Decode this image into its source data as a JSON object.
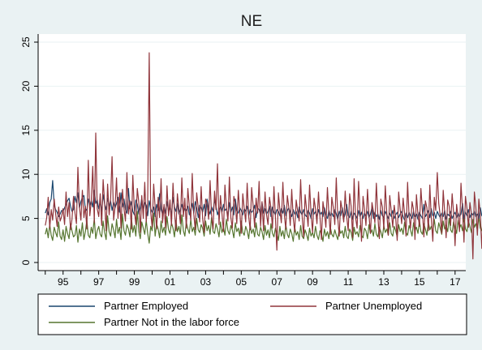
{
  "chart_data": {
    "type": "line",
    "title": "NE",
    "xlabel": "",
    "ylabel": "",
    "xlim": [
      1993.6,
      2017.6
    ],
    "ylim": [
      0,
      25
    ],
    "yticks": [
      0,
      5,
      10,
      15,
      20,
      25
    ],
    "xtick_labels": [
      {
        "label": "95",
        "x": 1995
      },
      {
        "label": "97",
        "x": 1997
      },
      {
        "label": "99",
        "x": 1999
      },
      {
        "label": "01",
        "x": 2001
      },
      {
        "label": "03",
        "x": 2003
      },
      {
        "label": "05",
        "x": 2005
      },
      {
        "label": "07",
        "x": 2007
      },
      {
        "label": "09",
        "x": 2009
      },
      {
        "label": "11",
        "x": 2011
      },
      {
        "label": "13",
        "x": 2013
      },
      {
        "label": "15",
        "x": 2015
      },
      {
        "label": "17",
        "x": 2017
      }
    ],
    "minor_ticks": [
      1994,
      1995,
      1996,
      1997,
      1998,
      1999,
      2000,
      2001,
      2002,
      2003,
      2004,
      2005,
      2006,
      2007,
      2008,
      2009,
      2010,
      2011,
      2012,
      2013,
      2014,
      2015,
      2016,
      2017
    ],
    "grid": true,
    "legend": "bottom",
    "start_year": 1994,
    "points_per_year": 12,
    "series": [
      {
        "name": "Partner Employed",
        "color": "#1a476f",
        "values": [
          5.6,
          6.1,
          5.4,
          6.8,
          7.2,
          9.3,
          6.5,
          6.0,
          5.7,
          5.2,
          5.5,
          5.9,
          5.8,
          6.2,
          6.6,
          7.0,
          7.3,
          6.4,
          5.8,
          6.0,
          7.5,
          6.8,
          7.9,
          6.2,
          6.9,
          7.4,
          7.6,
          6.1,
          5.9,
          7.2,
          6.5,
          7.0,
          6.3,
          8.2,
          6.7,
          7.1,
          6.1,
          6.9,
          5.8,
          7.7,
          6.6,
          6.0,
          7.3,
          6.4,
          7.0,
          5.9,
          6.8,
          6.2,
          6.7,
          7.4,
          5.7,
          7.9,
          6.3,
          7.2,
          6.0,
          5.6,
          8.4,
          6.1,
          6.9,
          5.8,
          5.4,
          7.1,
          6.6,
          5.5,
          6.2,
          7.3,
          5.9,
          6.8,
          6.5,
          5.3,
          7.0,
          6.1,
          5.7,
          6.3,
          5.2,
          6.6,
          5.9,
          7.8,
          6.0,
          5.5,
          6.4,
          5.6,
          6.9,
          5.8,
          6.2,
          5.4,
          7.4,
          6.3,
          5.8,
          6.7,
          5.5,
          6.0,
          6.6,
          5.7,
          6.1,
          5.9,
          6.4,
          5.4,
          6.0,
          6.7,
          5.6,
          6.9,
          6.2,
          5.1,
          6.5,
          6.2,
          5.7,
          6.6,
          5.3,
          7.2,
          6.0,
          5.5,
          6.3,
          5.8,
          7.1,
          6.4,
          5.4,
          6.0,
          6.3,
          5.7,
          6.6,
          5.9,
          6.1,
          5.2,
          6.8,
          5.7,
          6.3,
          5.4,
          7.2,
          5.9,
          5.6,
          6.2,
          5.9,
          5.4,
          6.1,
          5.8,
          6.4,
          5.3,
          6.0,
          5.7,
          5.9,
          6.5,
          5.1,
          6.2,
          6.0,
          5.4,
          6.8,
          5.6,
          6.1,
          5.5,
          5.8,
          6.4,
          5.2,
          6.3,
          5.7,
          5.4,
          6.0,
          5.8,
          5.3,
          6.1,
          5.6,
          6.5,
          5.3,
          5.9,
          6.2,
          5.7,
          5.2,
          6.0,
          5.5,
          5.8,
          5.1,
          6.3,
          5.7,
          5.4,
          6.0,
          5.4,
          5.2,
          5.9,
          5.6,
          5.0,
          6.1,
          5.5,
          5.8,
          5.1,
          6.0,
          5.4,
          5.7,
          5.2,
          6.2,
          5.4,
          5.0,
          5.9,
          5.3,
          5.6,
          5.2,
          6.0,
          5.5,
          4.9,
          5.8,
          5.3,
          6.2,
          5.0,
          5.5,
          6.6,
          5.3,
          5.1,
          5.8,
          4.9,
          5.6,
          5.4,
          5.0,
          5.9,
          5.2,
          5.7,
          5.0,
          5.6,
          5.3,
          5.8,
          5.1,
          5.5,
          6.2,
          5.0,
          5.7,
          5.2,
          5.5,
          4.9,
          5.9,
          5.3,
          5.1,
          5.8,
          5.4,
          5.0,
          5.6,
          5.2,
          5.9,
          5.0,
          5.4,
          5.7,
          5.1,
          5.5,
          5.8,
          5.2,
          4.8,
          5.6,
          5.1,
          5.7,
          5.3,
          5.0,
          5.8,
          5.2,
          5.5,
          4.9,
          5.7,
          5.3,
          5.0,
          6.6,
          5.2,
          5.5,
          5.9,
          5.1,
          6.1,
          5.3,
          5.7,
          5.0,
          5.8,
          5.4,
          5.1,
          5.6,
          5.2,
          5.9,
          4.9,
          5.5,
          5.3,
          5.8,
          5.0,
          5.4,
          5.7,
          5.1,
          5.6,
          5.2,
          5.5,
          6.7,
          5.0,
          5.7,
          5.3,
          6.0,
          5.1,
          5.6,
          5.4,
          5.8,
          5.2,
          5.5,
          5.0,
          6.2,
          5.3,
          5.7,
          5.1,
          5.9,
          5.4,
          6.1,
          5.2,
          5.6,
          5.8,
          5.0,
          6.3,
          5.5,
          5.2,
          5.9,
          5.3,
          5.7,
          5.0,
          6.0,
          5.4,
          5.2,
          5.6,
          5.0,
          6.1,
          5.3,
          4.9,
          5.5,
          6.3
        ]
      },
      {
        "name": "Partner Unemployed",
        "color": "#90353b",
        "values": [
          4.2,
          5.1,
          7.4,
          3.9,
          6.0,
          4.8,
          7.2,
          5.5,
          4.1,
          6.3,
          4.7,
          5.2,
          6.1,
          4.3,
          8.0,
          5.2,
          6.8,
          3.7,
          4.9,
          7.5,
          5.6,
          4.4,
          10.8,
          6.3,
          4.8,
          8.2,
          5.1,
          6.4,
          3.8,
          11.6,
          5.3,
          7.0,
          10.9,
          4.5,
          14.7,
          6.1,
          5.2,
          7.8,
          4.2,
          9.4,
          6.7,
          3.6,
          8.9,
          5.4,
          7.2,
          12.0,
          4.8,
          6.3,
          9.6,
          5.0,
          7.9,
          3.9,
          8.3,
          6.1,
          4.7,
          10.2,
          5.5,
          7.0,
          3.8,
          9.9,
          5.9,
          4.3,
          8.4,
          6.8,
          3.4,
          7.6,
          5.0,
          9.1,
          4.6,
          6.9,
          23.8,
          5.7,
          4.0,
          8.9,
          6.2,
          3.8,
          7.4,
          5.1,
          9.5,
          4.5,
          6.6,
          3.9,
          8.7,
          5.3,
          7.1,
          4.2,
          9.0,
          5.8,
          3.6,
          7.8,
          6.0,
          4.4,
          9.6,
          5.2,
          7.3,
          3.9,
          8.4,
          6.4,
          4.8,
          10.1,
          5.5,
          3.7,
          7.9,
          6.2,
          4.6,
          8.6,
          5.0,
          3.4,
          7.2,
          6.7,
          4.9,
          9.3,
          5.4,
          3.8,
          8.1,
          6.0,
          11.2,
          4.3,
          7.6,
          5.6,
          3.5,
          8.8,
          6.3,
          4.7,
          9.7,
          5.1,
          3.9,
          7.5,
          6.6,
          4.4,
          8.2,
          5.8,
          3.3,
          7.8,
          6.1,
          4.6,
          9.0,
          5.2,
          3.7,
          8.5,
          6.4,
          4.0,
          7.3,
          5.6,
          9.2,
          4.1,
          6.9,
          3.6,
          8.0,
          5.5,
          4.3,
          7.4,
          6.2,
          3.9,
          8.6,
          5.1,
          1.4,
          7.9,
          6.0,
          4.5,
          9.1,
          5.4,
          3.8,
          7.6,
          6.3,
          4.2,
          8.3,
          5.0,
          3.5,
          7.1,
          5.8,
          4.7,
          9.4,
          5.3,
          2.9,
          7.7,
          6.0,
          4.1,
          8.8,
          5.6,
          3.4,
          7.3,
          6.1,
          4.4,
          8.0,
          5.2,
          2.6,
          6.9,
          5.7,
          4.0,
          8.5,
          5.5,
          3.2,
          7.4,
          6.2,
          4.3,
          9.6,
          5.0,
          3.0,
          7.0,
          5.9,
          4.6,
          8.1,
          5.3,
          3.6,
          7.8,
          6.4,
          2.8,
          9.5,
          5.1,
          3.9,
          9.2,
          5.7,
          2.4,
          7.5,
          6.0,
          4.2,
          8.3,
          5.4,
          3.3,
          6.8,
          5.8,
          4.5,
          9.0,
          5.2,
          2.7,
          7.2,
          6.3,
          3.8,
          8.7,
          5.6,
          3.1,
          7.6,
          5.9,
          4.0,
          6.5,
          5.1,
          2.5,
          8.0,
          6.1,
          4.4,
          7.3,
          5.5,
          3.0,
          9.1,
          5.3,
          3.9,
          6.9,
          6.0,
          2.6,
          7.7,
          5.4,
          4.1,
          8.4,
          5.8,
          2.9,
          7.0,
          6.2,
          3.6,
          8.8,
          5.0,
          2.4,
          7.4,
          5.9,
          10.2,
          6.7,
          5.3,
          3.3,
          8.2,
          5.7,
          2.8,
          7.1,
          6.4,
          4.2,
          7.8,
          5.6,
          1.9,
          6.6,
          5.2,
          3.5,
          9.0,
          5.9,
          2.3,
          7.5,
          6.1,
          4.0,
          6.8,
          5.5,
          0.4,
          8.0,
          6.3,
          3.1,
          7.2,
          5.4,
          1.6,
          6.4,
          5.8,
          3.8,
          7.0,
          5.1,
          1.3,
          6.2,
          3.9,
          5.7,
          2.2,
          6.9,
          3.0,
          4.8,
          5.9
        ]
      },
      {
        "name": "Partner Not in the labor force",
        "color": "#55752f",
        "values": [
          3.2,
          3.9,
          2.8,
          4.3,
          3.1,
          2.5,
          4.0,
          3.4,
          2.9,
          4.6,
          3.0,
          2.6,
          3.7,
          2.4,
          4.1,
          3.3,
          2.7,
          4.4,
          3.6,
          2.9,
          3.1,
          4.2,
          2.3,
          3.8,
          3.0,
          4.5,
          2.6,
          3.5,
          4.8,
          3.1,
          2.8,
          4.0,
          3.3,
          5.0,
          2.7,
          3.6,
          4.1,
          3.2,
          2.9,
          4.7,
          3.4,
          2.6,
          5.3,
          3.5,
          3.0,
          4.4,
          3.7,
          2.8,
          4.9,
          3.3,
          4.0,
          2.6,
          5.5,
          3.6,
          3.1,
          4.3,
          3.8,
          2.9,
          5.1,
          3.4,
          4.2,
          3.0,
          5.8,
          3.5,
          2.7,
          4.6,
          3.9,
          3.2,
          4.8,
          3.3,
          2.2,
          4.1,
          3.6,
          5.6,
          3.0,
          4.4,
          3.8,
          2.8,
          4.7,
          3.4,
          4.0,
          3.1,
          5.2,
          3.7,
          3.3,
          4.5,
          3.9,
          2.9,
          4.8,
          3.5,
          4.1,
          3.2,
          5.4,
          3.6,
          3.0,
          4.6,
          3.8,
          3.3,
          4.9,
          3.5,
          4.0,
          3.1,
          5.0,
          3.7,
          3.4,
          4.3,
          3.9,
          3.0,
          4.7,
          3.6,
          4.2,
          3.2,
          5.1,
          3.5,
          3.3,
          4.4,
          3.8,
          2.9,
          4.6,
          3.4,
          4.0,
          3.1,
          4.9,
          3.6,
          3.2,
          4.2,
          3.7,
          2.8,
          4.5,
          3.5,
          3.9,
          3.0,
          4.7,
          3.4,
          3.1,
          4.1,
          3.6,
          2.7,
          4.3,
          3.3,
          3.8,
          2.9,
          4.5,
          3.2,
          3.0,
          4.0,
          3.5,
          2.6,
          4.2,
          3.1,
          3.7,
          2.8,
          4.4,
          3.3,
          2.9,
          3.9,
          3.4,
          2.5,
          4.1,
          3.0,
          3.6,
          2.7,
          4.3,
          3.2,
          2.8,
          3.8,
          3.3,
          2.4,
          4.0,
          3.1,
          3.5,
          2.6,
          4.2,
          3.0,
          2.7,
          3.7,
          3.2,
          2.5,
          3.9,
          3.0,
          3.4,
          2.8,
          4.1,
          3.1,
          2.6,
          3.6,
          3.3,
          2.4,
          3.8,
          3.0,
          3.5,
          2.7,
          4.0,
          3.2,
          2.9,
          3.7,
          3.1,
          2.6,
          3.9,
          3.3,
          3.6,
          2.8,
          4.1,
          3.0,
          2.7,
          3.8,
          3.4,
          2.5,
          4.0,
          3.2,
          3.5,
          2.9,
          4.2,
          3.1,
          2.8,
          3.9,
          3.6,
          2.7,
          4.3,
          3.3,
          3.7,
          3.0,
          4.4,
          3.2,
          2.9,
          4.0,
          3.5,
          2.8,
          4.2,
          3.4,
          3.8,
          3.1,
          4.5,
          3.3,
          3.0,
          4.1,
          3.6,
          2.9,
          4.3,
          3.5,
          3.9,
          3.2,
          4.6,
          3.4,
          3.1,
          4.2,
          3.7,
          3.0,
          4.5,
          3.6,
          4.0,
          3.3,
          4.8,
          3.5,
          3.2,
          4.4,
          3.8,
          3.1,
          4.6,
          3.7,
          4.1,
          3.4,
          4.9,
          3.6,
          3.3,
          4.5,
          3.9,
          3.2,
          4.7,
          3.8,
          4.2,
          3.5,
          5.0,
          3.7,
          3.4,
          4.6,
          4.0,
          3.3,
          4.8,
          3.9,
          4.3,
          3.6,
          5.1,
          3.8,
          3.5,
          4.7,
          4.1,
          3.4,
          4.9,
          4.0,
          4.4,
          3.7,
          5.2,
          3.9,
          3.6,
          4.8,
          4.2,
          3.5,
          5.0,
          4.1,
          4.5,
          3.8,
          5.3,
          4.0,
          3.7,
          4.9,
          4.3,
          3.6,
          5.1,
          4.2,
          4.6,
          3.9,
          5.0,
          4.1,
          3.8,
          4.4,
          5.2
        ]
      }
    ]
  }
}
